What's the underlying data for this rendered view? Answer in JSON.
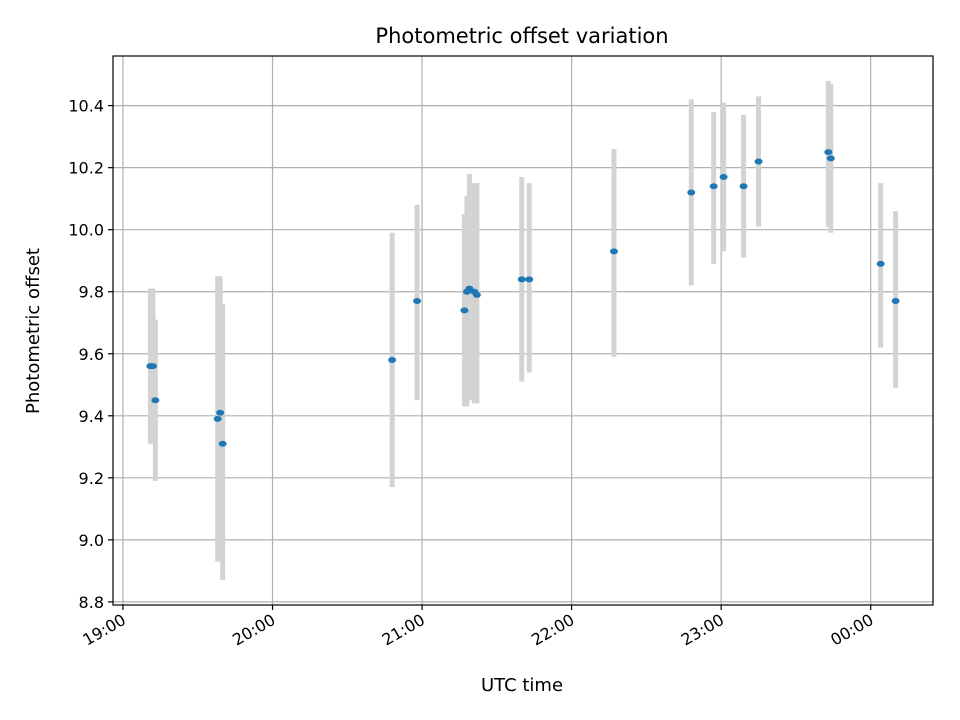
{
  "chart_data": {
    "type": "scatter",
    "title": "Photometric offset variation",
    "xlabel": "UTC time",
    "ylabel": "Photometric offset",
    "x_ticks": [
      "19:00",
      "20:00",
      "21:00",
      "22:00",
      "23:00",
      "00:00"
    ],
    "y_ticks": [
      "8.8",
      "9.0",
      "9.2",
      "9.4",
      "9.6",
      "9.8",
      "10.0",
      "10.2",
      "10.4"
    ],
    "x_range_utc": [
      "18:56",
      "00:25"
    ],
    "ylim": [
      8.79,
      10.56
    ],
    "grid": true,
    "marker_color": "#1f77b4",
    "errorbar_color": "#d3d3d3",
    "points": [
      {
        "time": "19:11",
        "offset": 9.56,
        "err_low": 9.31,
        "err_high": 9.81
      },
      {
        "time": "19:12",
        "offset": 9.56,
        "err_low": 9.31,
        "err_high": 9.81
      },
      {
        "time": "19:13",
        "offset": 9.45,
        "err_low": 9.19,
        "err_high": 9.71
      },
      {
        "time": "19:38",
        "offset": 9.39,
        "err_low": 8.93,
        "err_high": 9.85
      },
      {
        "time": "19:39",
        "offset": 9.41,
        "err_low": 8.93,
        "err_high": 9.85
      },
      {
        "time": "19:40",
        "offset": 9.31,
        "err_low": 8.87,
        "err_high": 9.76
      },
      {
        "time": "20:48",
        "offset": 9.58,
        "err_low": 9.17,
        "err_high": 9.99
      },
      {
        "time": "20:58",
        "offset": 9.77,
        "err_low": 9.45,
        "err_high": 10.08
      },
      {
        "time": "21:17",
        "offset": 9.74,
        "err_low": 9.43,
        "err_high": 10.05
      },
      {
        "time": "21:18",
        "offset": 9.8,
        "err_low": 9.43,
        "err_high": 10.11
      },
      {
        "time": "21:19",
        "offset": 9.81,
        "err_low": 9.45,
        "err_high": 10.18
      },
      {
        "time": "21:21",
        "offset": 9.8,
        "err_low": 9.44,
        "err_high": 10.15
      },
      {
        "time": "21:22",
        "offset": 9.79,
        "err_low": 9.44,
        "err_high": 10.15
      },
      {
        "time": "21:40",
        "offset": 9.84,
        "err_low": 9.51,
        "err_high": 10.17
      },
      {
        "time": "21:43",
        "offset": 9.84,
        "err_low": 9.54,
        "err_high": 10.15
      },
      {
        "time": "22:17",
        "offset": 9.93,
        "err_low": 9.59,
        "err_high": 10.26
      },
      {
        "time": "22:48",
        "offset": 10.12,
        "err_low": 9.82,
        "err_high": 10.42
      },
      {
        "time": "22:57",
        "offset": 10.14,
        "err_low": 9.89,
        "err_high": 10.38
      },
      {
        "time": "23:01",
        "offset": 10.17,
        "err_low": 9.93,
        "err_high": 10.41
      },
      {
        "time": "23:09",
        "offset": 10.14,
        "err_low": 9.91,
        "err_high": 10.37
      },
      {
        "time": "23:15",
        "offset": 10.22,
        "err_low": 10.01,
        "err_high": 10.43
      },
      {
        "time": "23:43",
        "offset": 10.25,
        "err_low": 10.01,
        "err_high": 10.48
      },
      {
        "time": "23:44",
        "offset": 10.23,
        "err_low": 9.99,
        "err_high": 10.47
      },
      {
        "time": "00:04",
        "offset": 9.89,
        "err_low": 9.62,
        "err_high": 10.15
      },
      {
        "time": "00:10",
        "offset": 9.77,
        "err_low": 9.49,
        "err_high": 10.06
      }
    ]
  }
}
